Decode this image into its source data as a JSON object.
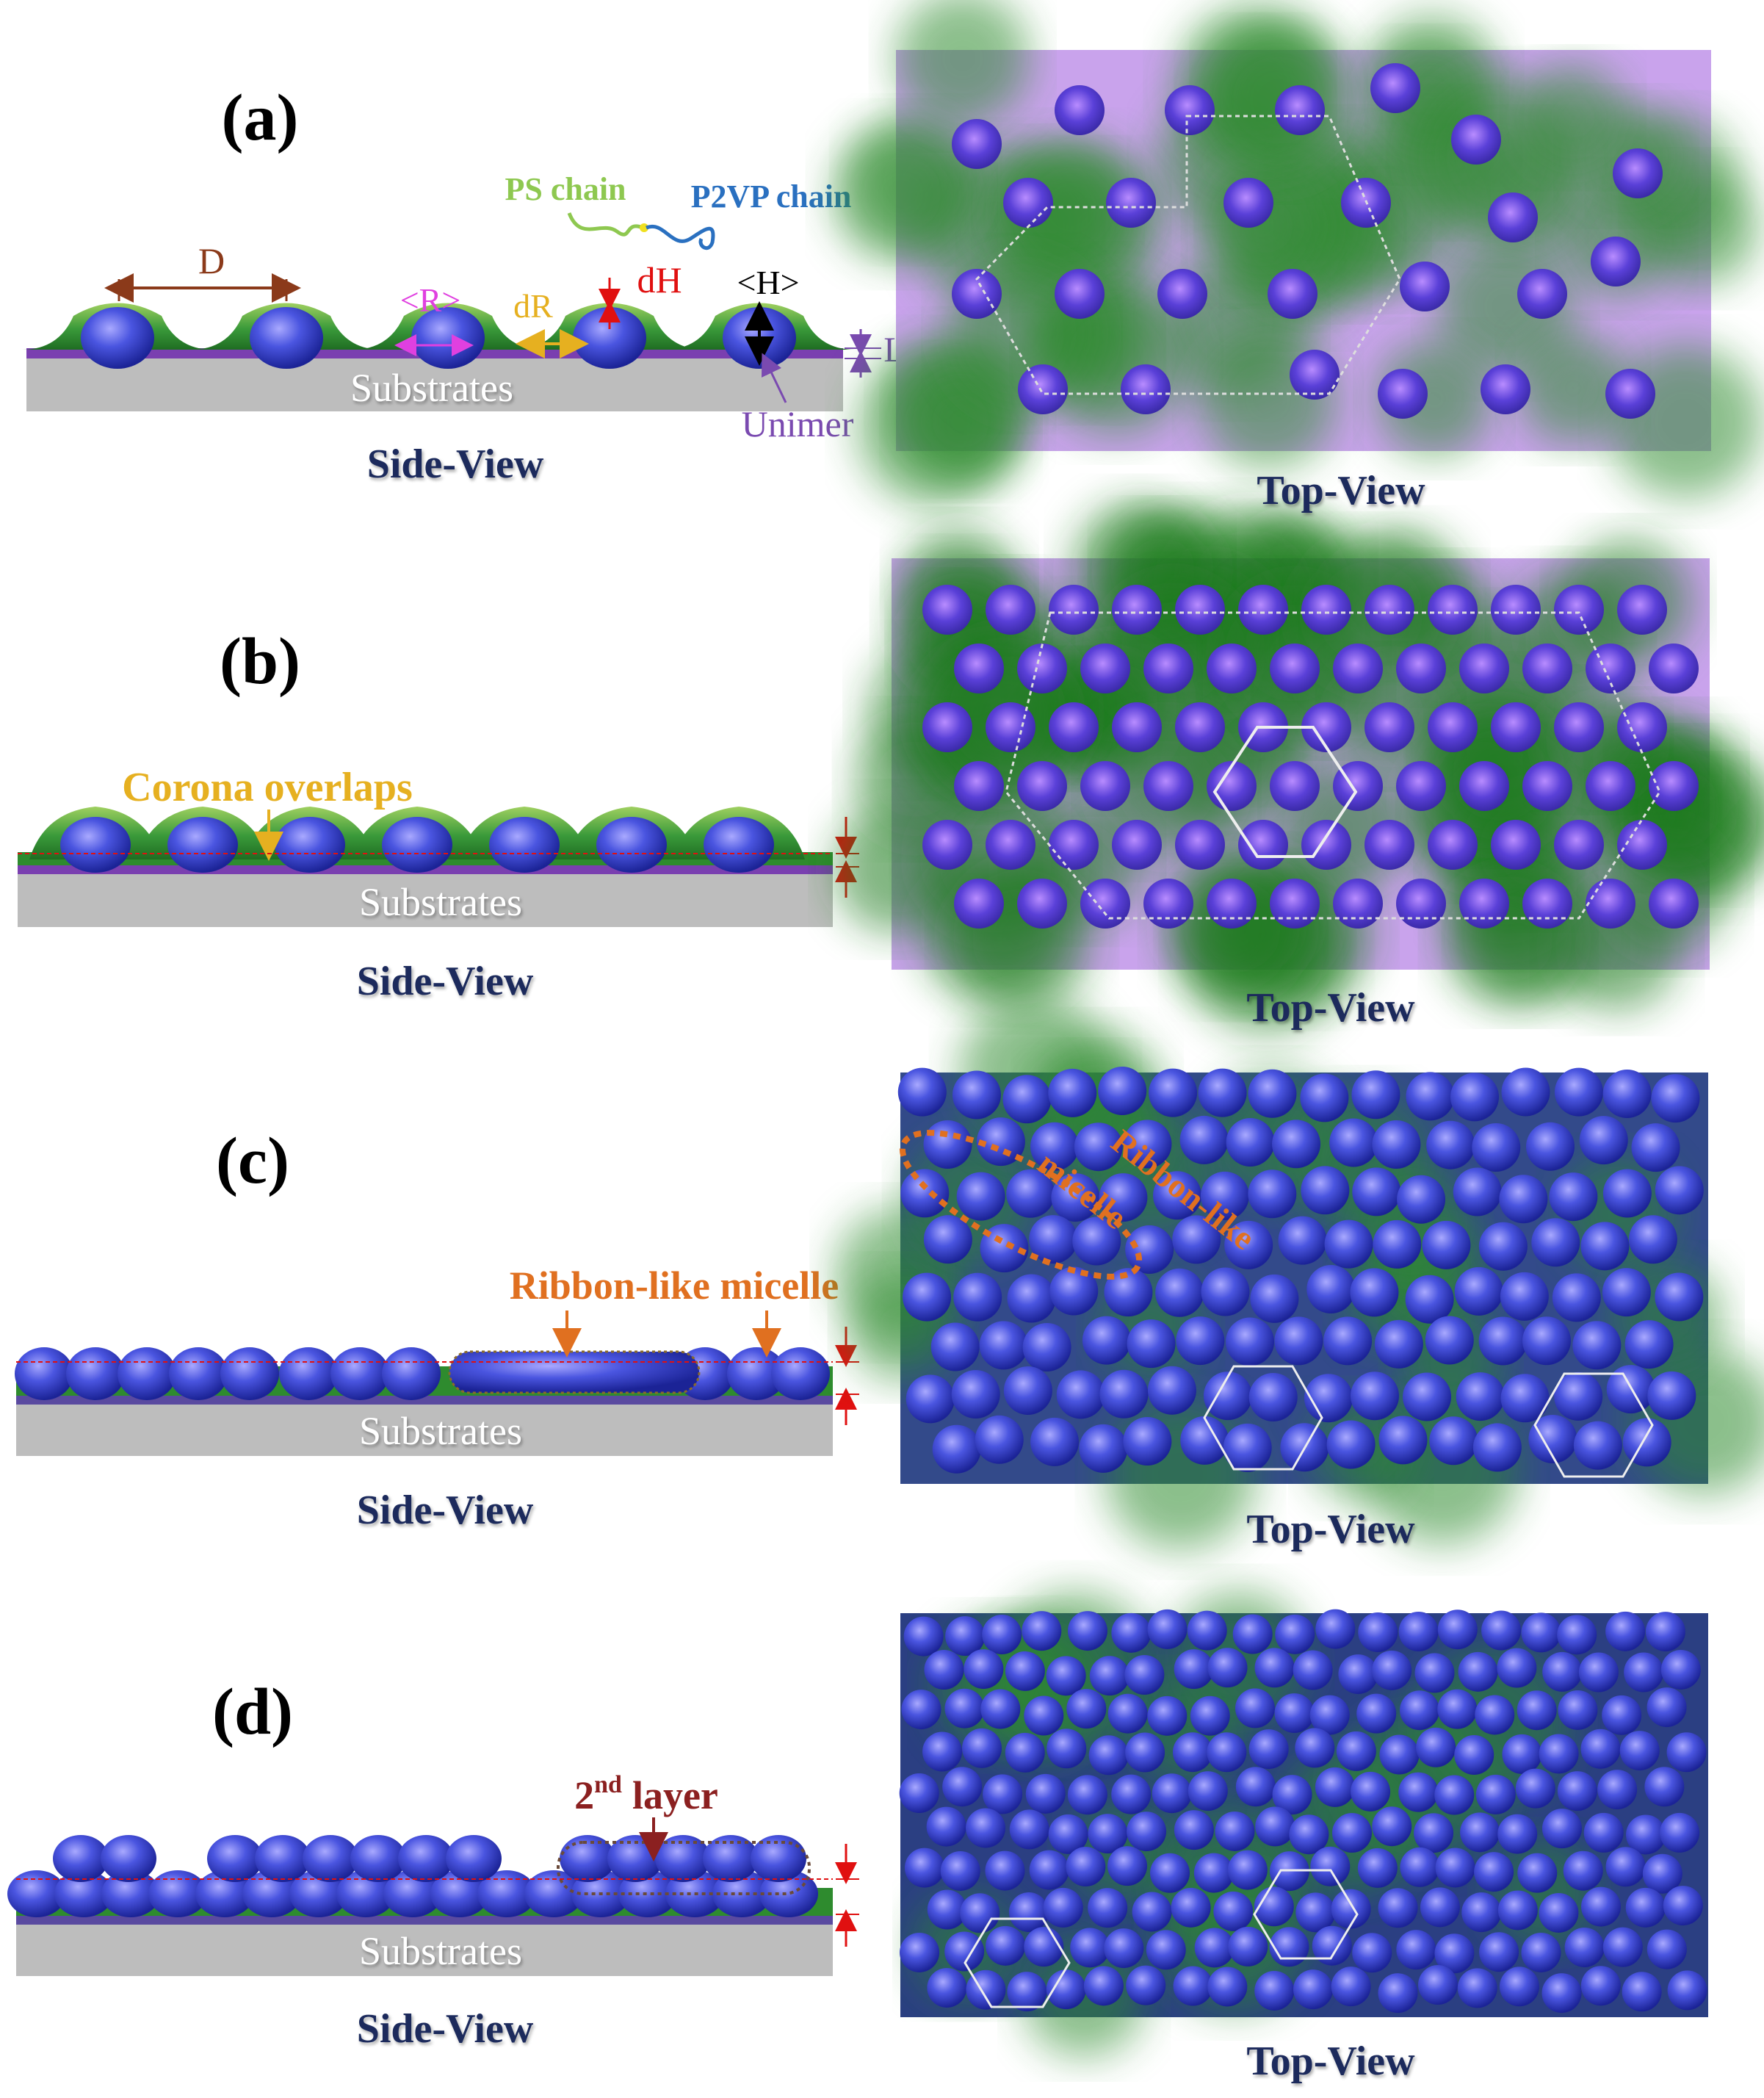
{
  "panels": [
    {
      "id": "a",
      "label": "(a)",
      "side_caption": "Side-View",
      "top_caption": "Top-View"
    },
    {
      "id": "b",
      "label": "(b)",
      "side_caption": "Side-View",
      "top_caption": "Top-View"
    },
    {
      "id": "c",
      "label": "(c)",
      "side_caption": "Side-View",
      "top_caption": "Top-View"
    },
    {
      "id": "d",
      "label": "(d)",
      "side_caption": "Side-View",
      "top_caption": "Top-View"
    }
  ],
  "substrate_label": "Substrates",
  "annotations": {
    "a": {
      "ps_chain": "PS chain",
      "p2vp_chain": "P2VP chain",
      "D": "D",
      "R": "<R>",
      "dR": "dR",
      "dH": "dH",
      "H": "<H>",
      "L": "L",
      "unimer": "Unimer"
    },
    "b": {
      "corona_overlaps": "Corona overlaps"
    },
    "c": {
      "ribbon_side": "Ribbon-like micelle",
      "ribbon_top_1": "Ribbon-like",
      "ribbon_top_2": "micelle"
    },
    "d": {
      "layer_number": "2",
      "layer_sup": "nd",
      "layer_word": "layer"
    }
  },
  "colors": {
    "core": "#2f3fd0",
    "corona": "#2e8b2e",
    "corona_light": "#9acd50",
    "unimer": "#7a3fb0",
    "background_top": "#c9a3ec",
    "substrate": "#bdbdbd",
    "label_brown": "#8b3a1a",
    "label_magenta": "#e040e0",
    "label_gold": "#e6b020",
    "label_red": "#e01010",
    "label_orange": "#e07020",
    "label_green": "#8ec850",
    "label_blue": "#2a70c0",
    "label_purple": "#7a4ab0",
    "caption_navy": "#1a2a5c"
  }
}
